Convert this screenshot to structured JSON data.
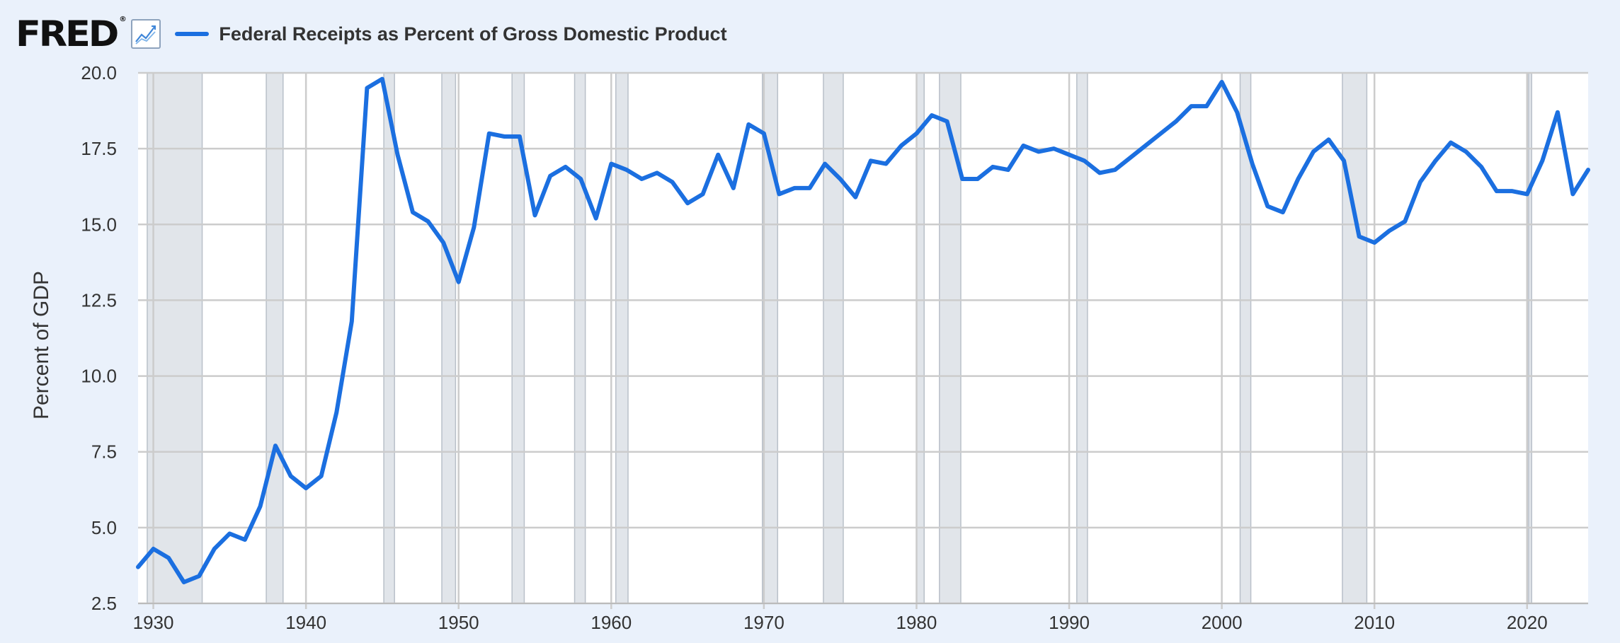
{
  "header": {
    "logo_text": "FRED",
    "logo_mark": "®",
    "graph_icon": "line-chart-icon",
    "legend_color": "#1b6fe0"
  },
  "chart_data": {
    "type": "line",
    "title": "",
    "xlabel": "",
    "ylabel": "Percent of GDP",
    "xlim": [
      1929,
      2024
    ],
    "ylim": [
      2.5,
      20.0
    ],
    "yticks": [
      "2.5",
      "5.0",
      "7.5",
      "10.0",
      "12.5",
      "15.0",
      "17.5",
      "20.0"
    ],
    "xticks": [
      "1930",
      "1940",
      "1950",
      "1960",
      "1970",
      "1980",
      "1990",
      "2000",
      "2010",
      "2020"
    ],
    "grid": true,
    "legend_position": "top-left",
    "recession_shading_color": "#e1e5ea",
    "recessions": [
      [
        1929.6,
        1933.2
      ],
      [
        1937.4,
        1938.5
      ],
      [
        1945.1,
        1945.8
      ],
      [
        1948.9,
        1949.8
      ],
      [
        1953.5,
        1954.3
      ],
      [
        1957.6,
        1958.3
      ],
      [
        1960.3,
        1961.1
      ],
      [
        1969.9,
        1970.9
      ],
      [
        1973.9,
        1975.2
      ],
      [
        1980.0,
        1980.5
      ],
      [
        1981.5,
        1982.9
      ],
      [
        1990.5,
        1991.2
      ],
      [
        2001.2,
        2001.9
      ],
      [
        2007.9,
        2009.5
      ],
      [
        2020.1,
        2020.3
      ]
    ],
    "series": [
      {
        "name": "Federal Receipts as Percent of Gross Domestic Product",
        "color": "#1b6fe0",
        "x": [
          1929,
          1930,
          1931,
          1932,
          1933,
          1934,
          1935,
          1936,
          1937,
          1938,
          1939,
          1940,
          1941,
          1942,
          1943,
          1944,
          1945,
          1946,
          1947,
          1948,
          1949,
          1950,
          1951,
          1952,
          1953,
          1954,
          1955,
          1956,
          1957,
          1958,
          1959,
          1960,
          1961,
          1962,
          1963,
          1964,
          1965,
          1966,
          1967,
          1968,
          1969,
          1970,
          1971,
          1972,
          1973,
          1974,
          1975,
          1976,
          1977,
          1978,
          1979,
          1980,
          1981,
          1982,
          1983,
          1984,
          1985,
          1986,
          1987,
          1988,
          1989,
          1990,
          1991,
          1992,
          1993,
          1994,
          1995,
          1996,
          1997,
          1998,
          1999,
          2000,
          2001,
          2002,
          2003,
          2004,
          2005,
          2006,
          2007,
          2008,
          2009,
          2010,
          2011,
          2012,
          2013,
          2014,
          2015,
          2016,
          2017,
          2018,
          2019,
          2020,
          2021,
          2022,
          2023,
          2024
        ],
        "y": [
          3.7,
          4.3,
          4.0,
          3.2,
          3.4,
          4.3,
          4.8,
          4.6,
          5.7,
          7.7,
          6.7,
          6.3,
          6.7,
          8.8,
          11.8,
          19.5,
          19.8,
          17.3,
          15.4,
          15.1,
          14.4,
          13.1,
          14.9,
          18.0,
          17.9,
          17.9,
          15.3,
          16.6,
          16.9,
          16.5,
          15.2,
          17.0,
          16.8,
          16.5,
          16.7,
          16.4,
          15.7,
          16.0,
          17.3,
          16.2,
          18.3,
          18.0,
          16.0,
          16.2,
          16.2,
          17.0,
          16.5,
          15.9,
          17.1,
          17.0,
          17.6,
          18.0,
          18.6,
          18.4,
          16.5,
          16.5,
          16.9,
          16.8,
          17.6,
          17.4,
          17.5,
          17.3,
          17.1,
          16.7,
          16.8,
          17.2,
          17.6,
          18.0,
          18.4,
          18.9,
          18.9,
          19.7,
          18.7,
          17.0,
          15.6,
          15.4,
          16.5,
          17.4,
          17.8,
          17.1,
          14.6,
          14.4,
          14.8,
          15.1,
          16.4,
          17.1,
          17.7,
          17.4,
          16.9,
          16.1,
          16.1,
          16.0,
          17.1,
          18.7,
          16.0,
          16.8
        ]
      }
    ]
  }
}
